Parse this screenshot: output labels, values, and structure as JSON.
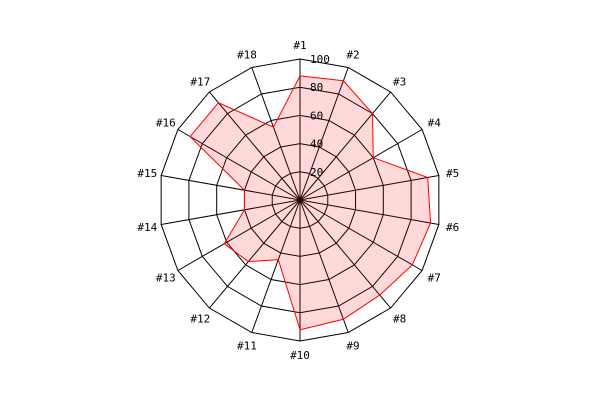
{
  "chart_data": {
    "type": "radar",
    "categories": [
      "#1",
      "#2",
      "#3",
      "#4",
      "#5",
      "#6",
      "#7",
      "#8",
      "#9",
      "#10",
      "#11",
      "#12",
      "#13",
      "#14",
      "#15",
      "#16",
      "#17",
      "#18"
    ],
    "r_ticks": [
      20,
      40,
      60,
      80,
      100
    ],
    "r_range": [
      0,
      100
    ],
    "grid": true,
    "colors": {
      "line": "#ff0000",
      "fill": "#ff000026",
      "grid": "#000000"
    },
    "series": [
      {
        "values": [
          88,
          90,
          80,
          60,
          92,
          94,
          92,
          88,
          90,
          92,
          45,
          57,
          62,
          40,
          40,
          90,
          90,
          55
        ]
      }
    ]
  }
}
